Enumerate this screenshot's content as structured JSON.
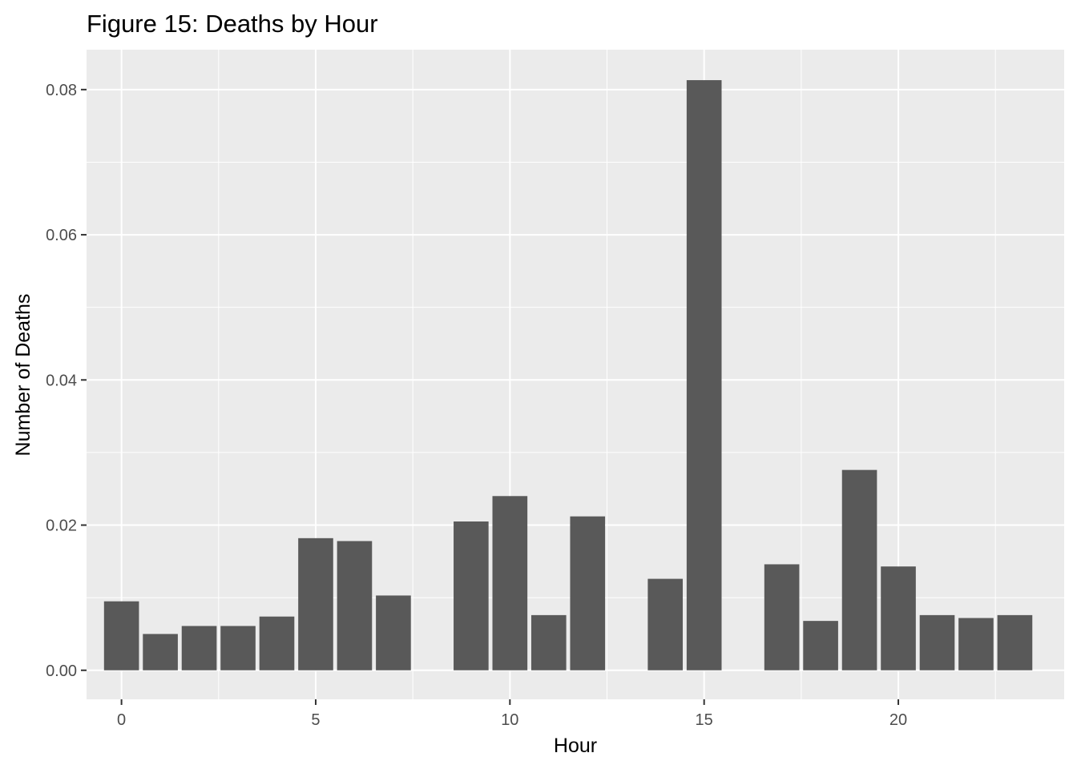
{
  "chart_data": {
    "type": "bar",
    "title": "Figure 15: Deaths by Hour",
    "xlabel": "Hour",
    "ylabel": "Number of Deaths",
    "x": [
      0,
      1,
      2,
      3,
      4,
      5,
      6,
      7,
      9,
      10,
      11,
      12,
      14,
      15,
      17,
      18,
      19,
      20,
      21,
      22,
      23
    ],
    "values": [
      0.0095,
      0.005,
      0.0061,
      0.0061,
      0.0074,
      0.0182,
      0.0178,
      0.0103,
      0.0205,
      0.024,
      0.0076,
      0.0212,
      0.0126,
      0.0813,
      0.0146,
      0.0068,
      0.0276,
      0.0143,
      0.0076,
      0.0072,
      0.0076
    ],
    "xlim": [
      -0.9,
      24.27
    ],
    "ylim": [
      -0.004,
      0.0855
    ],
    "x_ticks": [
      0,
      5,
      10,
      15,
      20
    ],
    "x_tick_labels": [
      "0",
      "5",
      "10",
      "15",
      "20"
    ],
    "x_minor_ticks": [
      2.5,
      7.5,
      12.5,
      17.5,
      22.5
    ],
    "y_ticks": [
      0,
      0.02,
      0.04,
      0.06,
      0.08
    ],
    "y_tick_labels": [
      "0.00",
      "0.02",
      "0.04",
      "0.06",
      "0.08"
    ],
    "y_minor_ticks": [
      0.01,
      0.03,
      0.05,
      0.07
    ],
    "grid": true,
    "legend": "none",
    "colors": {
      "panel": "#ebebeb",
      "grid": "#ffffff",
      "bar": "#595959",
      "tick_text": "#4d4d4d",
      "tick_mark": "#333333"
    }
  }
}
